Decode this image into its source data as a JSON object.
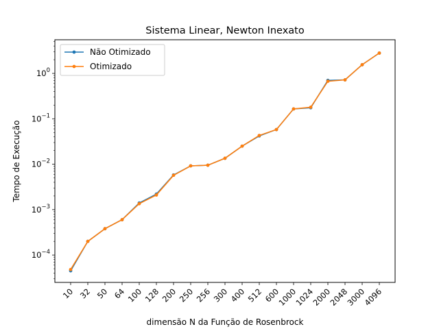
{
  "chart_data": {
    "type": "line",
    "title": "Sistema Linear, Newton Inexato",
    "xlabel": "dimensão N da Função de Rosenbrock",
    "ylabel": "Tempo de Execução",
    "yscale": "log",
    "ylim": [
      2.5e-05,
      5.5
    ],
    "y_ticks": [
      {
        "value": 0.0001,
        "base": "10",
        "exp": "−4"
      },
      {
        "value": 0.001,
        "base": "10",
        "exp": "−3"
      },
      {
        "value": 0.01,
        "base": "10",
        "exp": "−2"
      },
      {
        "value": 0.1,
        "base": "10",
        "exp": "−1"
      },
      {
        "value": 1,
        "base": "10",
        "exp": "0"
      }
    ],
    "categories": [
      "10",
      "32",
      "50",
      "64",
      "100",
      "128",
      "200",
      "250",
      "256",
      "300",
      "400",
      "512",
      "600",
      "1000",
      "1024",
      "2000",
      "2048",
      "3000",
      "4096"
    ],
    "series": [
      {
        "name": "Não Otimizado",
        "color": "#1f77b4",
        "values": [
          4.5e-05,
          0.0002,
          0.00038,
          0.0006,
          0.0014,
          0.0022,
          0.0058,
          0.0092,
          0.0095,
          0.0135,
          0.025,
          0.042,
          0.058,
          0.165,
          0.175,
          0.7,
          0.72,
          1.55,
          2.8
        ]
      },
      {
        "name": "Otimizado",
        "color": "#ff7f0e",
        "values": [
          4.8e-05,
          0.0002,
          0.00038,
          0.0006,
          0.00135,
          0.0021,
          0.0057,
          0.0092,
          0.0095,
          0.0135,
          0.025,
          0.043,
          0.058,
          0.165,
          0.18,
          0.67,
          0.72,
          1.55,
          2.8
        ]
      }
    ],
    "grid": false,
    "legend_position": "top-left"
  }
}
